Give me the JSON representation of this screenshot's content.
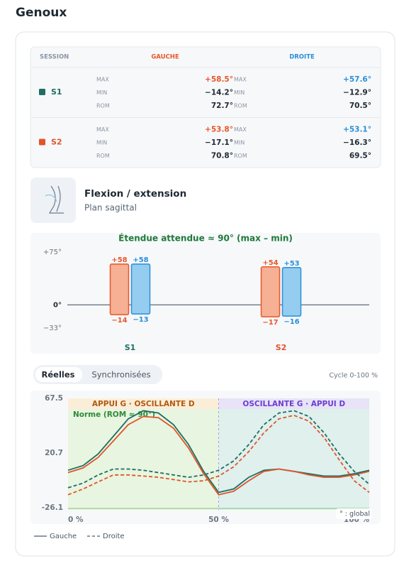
{
  "header": {
    "title": "Genoux"
  },
  "table": {
    "headers": [
      "SESSION",
      "GAUCHE",
      "DROITE"
    ],
    "colors": {
      "left": "#e8572a",
      "right": "#2a8fd8"
    },
    "rows": [
      {
        "session": "S1",
        "color": "#1e6e62",
        "metrics": [
          {
            "label": "MAX",
            "left": "+58.5°",
            "right": "+57.6°"
          },
          {
            "label": "MIN",
            "left": "−14.2°",
            "right": "−12.9°"
          },
          {
            "label": "ROM",
            "left": "72.7°",
            "right": "70.5°"
          }
        ]
      },
      {
        "session": "S2",
        "color": "#e0542c",
        "metrics": [
          {
            "label": "MAX",
            "left": "+53.8°",
            "right": "+53.1°"
          },
          {
            "label": "MIN",
            "left": "−17.1°",
            "right": "−16.3°"
          },
          {
            "label": "ROM",
            "left": "70.8°",
            "right": "69.5°"
          }
        ]
      }
    ]
  },
  "section": {
    "title": "Flexion / extension",
    "subtitle": "Plan sagittal"
  },
  "tabs": {
    "items": [
      "Réelles",
      "Synchronisées"
    ],
    "active": 0,
    "note": "Cycle 0-100 %"
  },
  "chart_data": [
    {
      "type": "range_bar",
      "title": "Étendue attendue ≈ 90° (max – min)",
      "categories": [
        "S1",
        "S2"
      ],
      "category_colors": [
        "#1e6e62",
        "#e0542c"
      ],
      "ylim": [
        -33,
        75
      ],
      "yticks": [
        {
          "value": 75,
          "label": "+75°"
        },
        {
          "value": 0,
          "label": "0°"
        },
        {
          "value": -33,
          "label": "−33°"
        }
      ],
      "series": [
        {
          "color": "#e8572a",
          "fill": "#f6b094",
          "values": [
            58,
            54
          ],
          "value_labels": [
            "+58",
            "+54"
          ],
          "mins": [
            -14,
            -17
          ],
          "min_labels": [
            "−14",
            "−17"
          ]
        },
        {
          "color": "#2a8fd8",
          "fill": "#94cdf0",
          "values": [
            58,
            53
          ],
          "value_labels": [
            "+58",
            "+53"
          ],
          "mins": [
            -13,
            -16
          ],
          "min_labels": [
            "−13",
            "−16"
          ]
        }
      ]
    },
    {
      "type": "line",
      "x": [
        0,
        5,
        10,
        15,
        20,
        25,
        30,
        35,
        40,
        45,
        50,
        55,
        60,
        65,
        70,
        75,
        80,
        85,
        90,
        95,
        100
      ],
      "xlim": [
        0,
        100
      ],
      "xticks": [
        {
          "value": 0,
          "label": "0 %"
        },
        {
          "value": 50,
          "label": "50 %"
        },
        {
          "value": 100,
          "label": "100 %"
        }
      ],
      "ylim": [
        -26.1,
        67.5
      ],
      "yticks": [
        67.5,
        20.7,
        -26.1
      ],
      "phases": [
        {
          "label": "APPUI G · OSCILLANTE D",
          "from": 0,
          "to": 50,
          "color": "#b05a10",
          "band": "#e8f5e0",
          "head": "#fbeed8"
        },
        {
          "label": "OSCILLANTE G · APPUI D",
          "from": 50,
          "to": 100,
          "color": "#6a3fd0",
          "band": "#dff0ed",
          "head": "#e8e3f7"
        }
      ],
      "annotation": "Norme (ROM ≈ 90°)",
      "note": "° : global",
      "legend": [
        {
          "name": "Gauche",
          "dashed": false
        },
        {
          "name": "Droite",
          "dashed": true
        }
      ],
      "series": [
        {
          "color": "#1e6e62",
          "dashed": false,
          "values": [
            6,
            10,
            20,
            35,
            50,
            57,
            55,
            45,
            28,
            5,
            -13,
            -10,
            0,
            6,
            7,
            5,
            3,
            1,
            1,
            3,
            6
          ]
        },
        {
          "color": "#e0542c",
          "dashed": false,
          "values": [
            4,
            8,
            17,
            31,
            45,
            52,
            51,
            42,
            25,
            3,
            -15,
            -12,
            -3,
            5,
            7,
            5,
            2,
            0,
            0,
            2,
            5
          ]
        },
        {
          "color": "#1e6e62",
          "dashed": true,
          "values": [
            -9,
            -5,
            2,
            7,
            7,
            6,
            4,
            2,
            0,
            2,
            6,
            14,
            28,
            45,
            55,
            57,
            52,
            38,
            20,
            5,
            -6
          ]
        },
        {
          "color": "#e0542c",
          "dashed": true,
          "values": [
            -15,
            -10,
            -4,
            2,
            2,
            1,
            0,
            -2,
            -4,
            -3,
            1,
            9,
            22,
            38,
            50,
            53,
            48,
            34,
            15,
            -3,
            -13
          ]
        }
      ]
    }
  ]
}
